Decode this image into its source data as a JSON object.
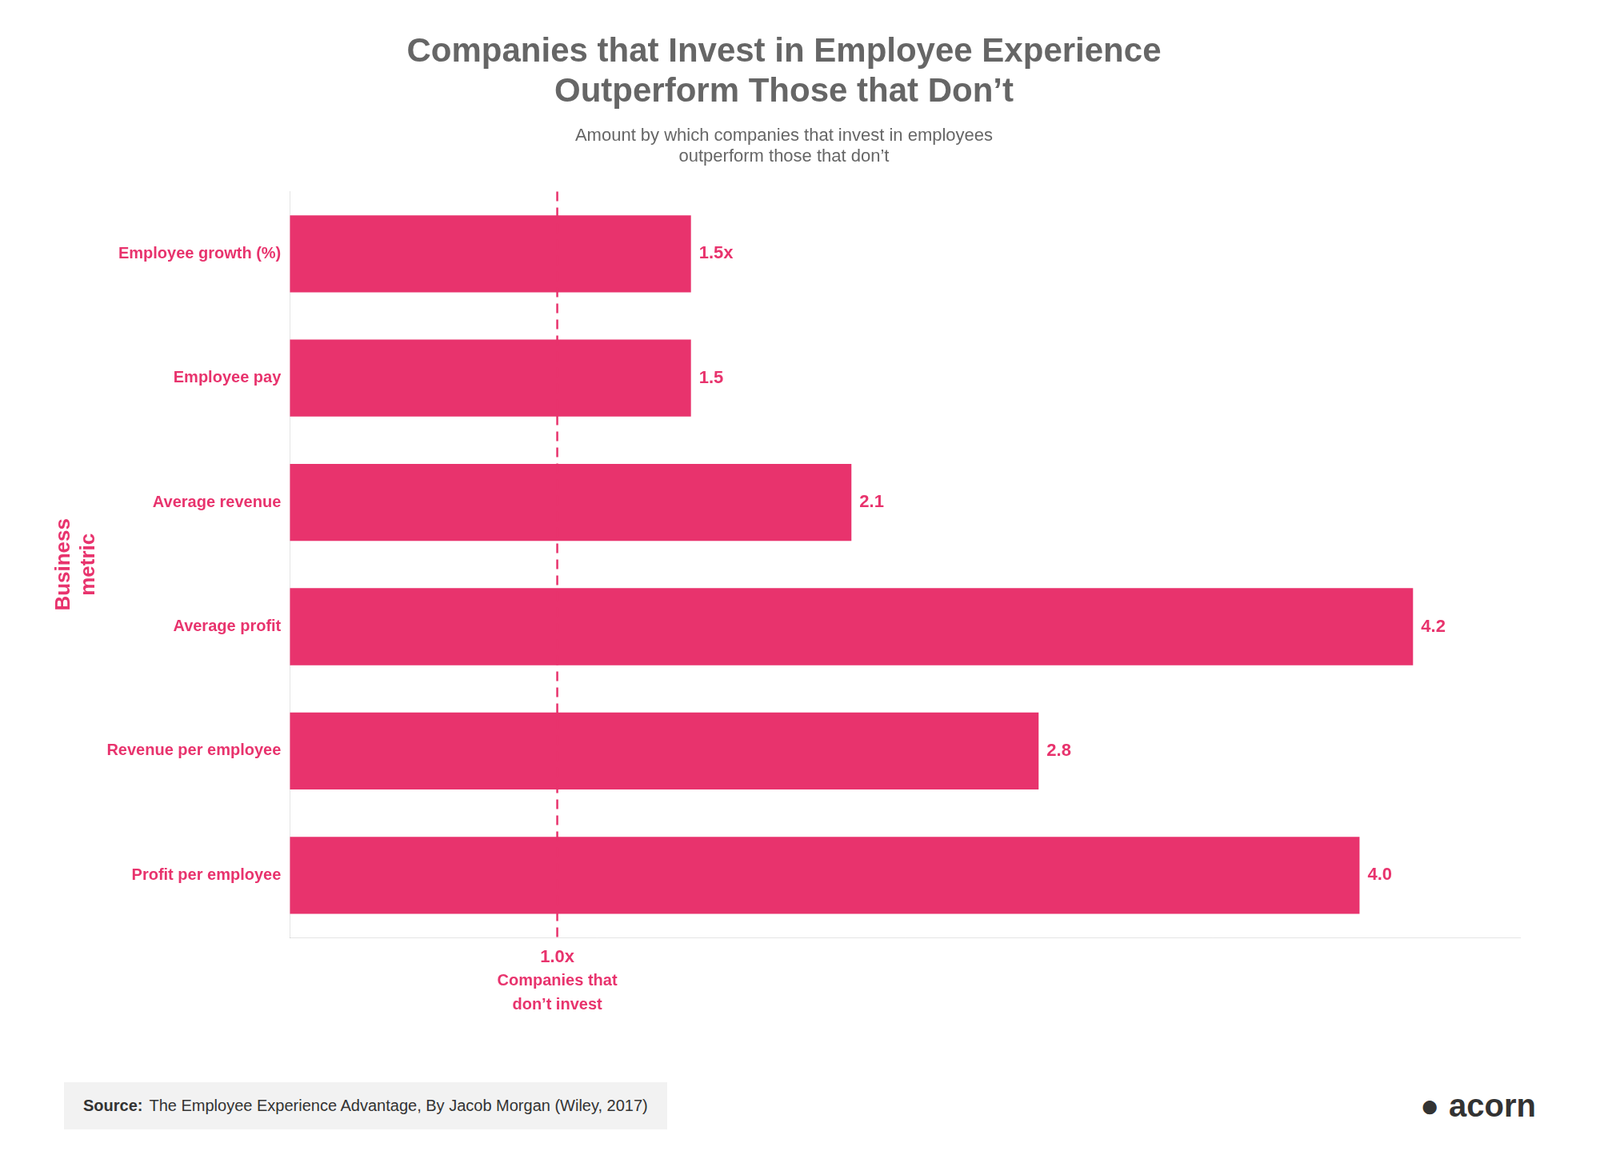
{
  "chart_data": {
    "type": "bar",
    "orientation": "horizontal",
    "title": [
      "Companies that Invest in Employee Experience",
      "Outperform Those that Don’t"
    ],
    "subtitle": [
      "Amount by which companies that invest in employees",
      "outperform those that don’t"
    ],
    "ylabel": [
      "Business",
      "metric"
    ],
    "categories": [
      "Employee growth (%)",
      "Employee pay",
      "Average revenue",
      "Average profit",
      "Revenue per employee",
      "Profit per employee"
    ],
    "values": [
      1.5,
      1.5,
      2.1,
      4.2,
      2.8,
      4.0
    ],
    "value_labels": [
      "1.5x",
      "1.5",
      "2.1",
      "4.2",
      "2.8",
      "4.0"
    ],
    "data_labels": true,
    "color": "#E8336D",
    "xlim": [
      0,
      4.6
    ],
    "tick_labels": "y",
    "grid": false,
    "annotations": [
      {
        "x": 1.0,
        "line_style": "dashed",
        "text": [
          "1.0x",
          "Companies that",
          "don’t invest"
        ]
      }
    ],
    "source_label": "Source:",
    "source_text": "The Employee Experience Advantage, By Jacob Morgan (Wiley, 2017)",
    "logo_icon": "●",
    "logo_text": "acorn"
  }
}
